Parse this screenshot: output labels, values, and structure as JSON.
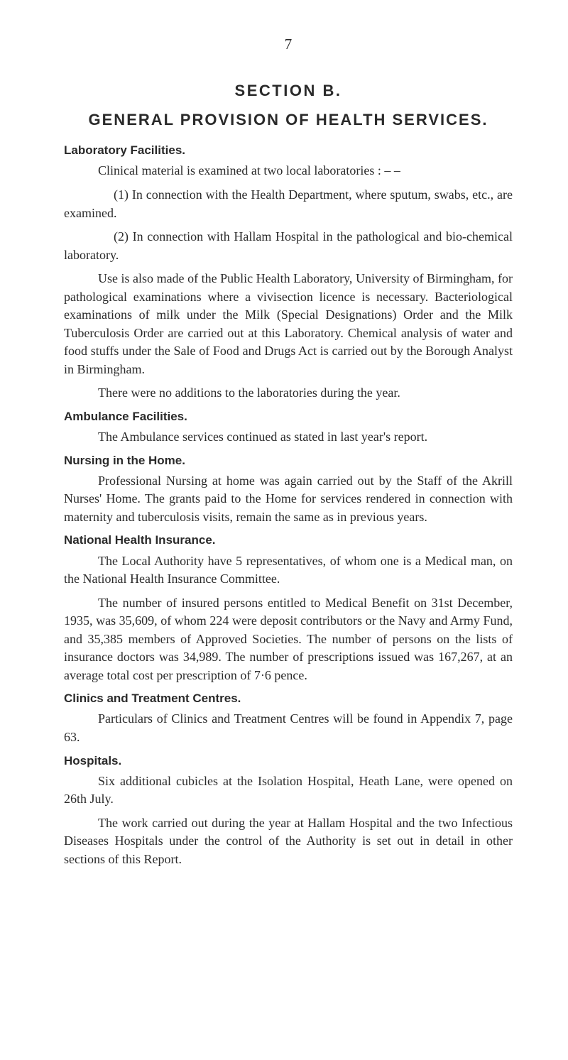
{
  "page_number": "7",
  "section_label": "SECTION B.",
  "main_heading": "GENERAL PROVISION OF HEALTH SERVICES.",
  "sections": {
    "lab": {
      "heading": "Laboratory Facilities.",
      "p1": "Clinical material is examined at two local laboratories : – –",
      "p2": "(1) In connection with the Health Department, where sputum, swabs, etc., are examined.",
      "p3": "(2) In connection with Hallam Hospital in the pathological and bio-chemical laboratory.",
      "p4": "Use is also made of the Public Health Laboratory, University of Birmingham, for pathological examinations where a vivisection licence is necessary. Bacteriological examinations of milk under the Milk (Special Designations) Order and the Milk Tuberculosis Order are carried out at this Laboratory. Chemical analysis of water and food stuffs under the Sale of Food and Drugs Act is carried out by the Borough Analyst in Birmingham.",
      "p5": "There were no additions to the laboratories during the year."
    },
    "ambulance": {
      "heading": "Ambulance Facilities.",
      "p1": "The Ambulance services continued as stated in last year's report."
    },
    "nursing": {
      "heading": "Nursing in the Home.",
      "p1": "Professional Nursing at home was again carried out by the Staff of the Akrill Nurses' Home. The grants paid to the Home for services rendered in connection with maternity and tuberculosis visits, remain the same as in previous years."
    },
    "insurance": {
      "heading": "National Health Insurance.",
      "p1": "The Local Authority have 5 representatives, of whom one is a Medical man, on the National Health Insurance Committee.",
      "p2": "The number of insured persons entitled to Medical Benefit on 31st December, 1935, was 35,609, of whom 224 were deposit contributors or the Navy and Army Fund, and 35,385 members of Approved Societies. The number of persons on the lists of insurance doctors was 34,989. The number of prescriptions issued was 167,267, at an average total cost per prescription of 7·6 pence."
    },
    "clinics": {
      "heading": "Clinics and Treatment Centres.",
      "p1": "Particulars of Clinics and Treatment Centres will be found in Appendix 7, page 63."
    },
    "hospitals": {
      "heading": "Hospitals.",
      "p1": "Six additional cubicles at the Isolation Hospital, Heath Lane, were opened on 26th July.",
      "p2": "The work carried out during the year at Hallam Hospital and the two Infectious Diseases Hospitals under the control of the Authority is set out in detail in other sections of this Report."
    }
  }
}
